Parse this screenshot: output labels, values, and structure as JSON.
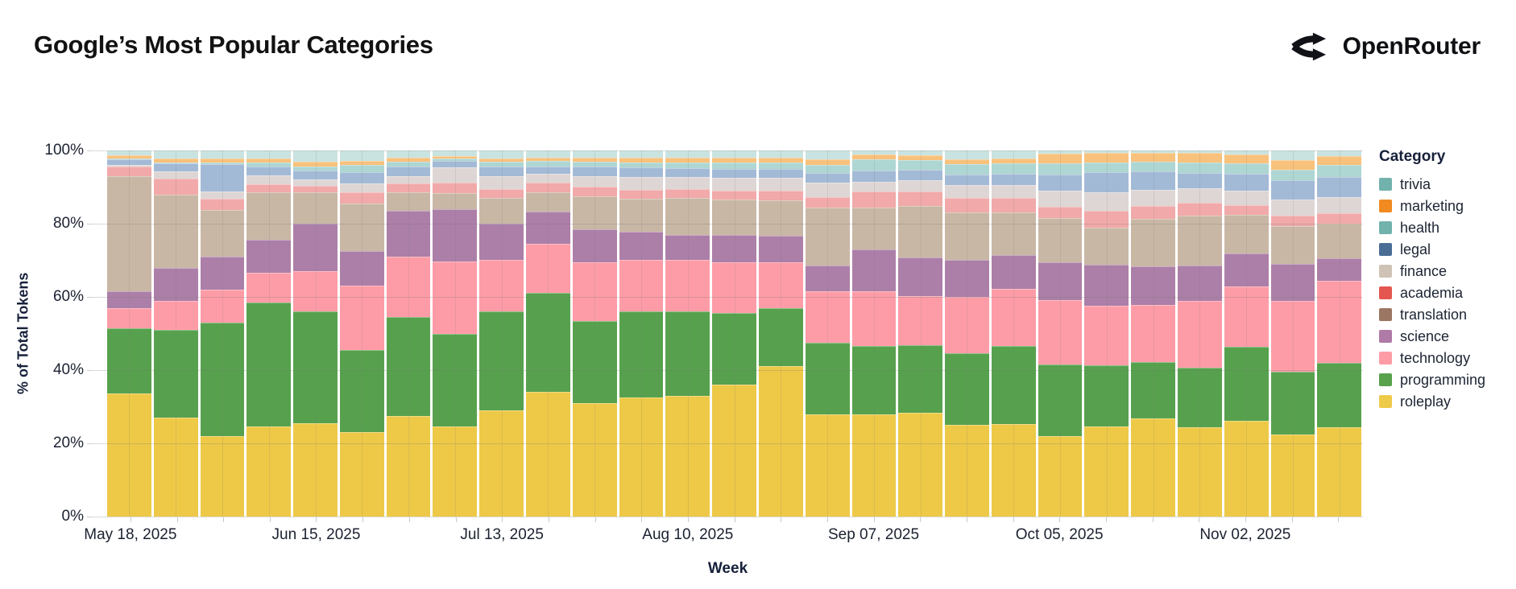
{
  "header": {
    "title": "Google’s Most Popular Categories",
    "brand": "OpenRouter"
  },
  "legend": {
    "title": "Category"
  },
  "chart_data": {
    "type": "bar",
    "stacked": true,
    "normalized": true,
    "title": "Google’s Most Popular Categories",
    "xlabel": "Week",
    "ylabel": "% of Total Tokens",
    "ylim": [
      0,
      100
    ],
    "grid": true,
    "legend_position": "right",
    "yticks": [
      {
        "value": 0,
        "label": "0%"
      },
      {
        "value": 20,
        "label": "20%"
      },
      {
        "value": 40,
        "label": "40%"
      },
      {
        "value": 60,
        "label": "60%"
      },
      {
        "value": 80,
        "label": "80%"
      },
      {
        "value": 100,
        "label": "100%"
      }
    ],
    "xticks": [
      {
        "bar": 0,
        "label": "May 18, 2025"
      },
      {
        "bar": 4,
        "label": "Jun 15, 2025"
      },
      {
        "bar": 8,
        "label": "Jul 13, 2025"
      },
      {
        "bar": 12,
        "label": "Aug 10, 2025"
      },
      {
        "bar": 16,
        "label": "Sep 07, 2025"
      },
      {
        "bar": 20,
        "label": "Oct 05, 2025"
      },
      {
        "bar": 24,
        "label": "Nov 02, 2025"
      }
    ],
    "weeks": [
      "May 18, 2025",
      "May 25, 2025",
      "Jun 01, 2025",
      "Jun 08, 2025",
      "Jun 15, 2025",
      "Jun 22, 2025",
      "Jun 29, 2025",
      "Jul 06, 2025",
      "Jul 13, 2025",
      "Jul 20, 2025",
      "Jul 27, 2025",
      "Aug 03, 2025",
      "Aug 10, 2025",
      "Aug 17, 2025",
      "Aug 24, 2025",
      "Aug 31, 2025",
      "Sep 07, 2025",
      "Sep 14, 2025",
      "Sep 21, 2025",
      "Sep 28, 2025",
      "Oct 05, 2025",
      "Oct 12, 2025",
      "Oct 19, 2025",
      "Oct 26, 2025",
      "Nov 02, 2025",
      "Nov 09, 2025",
      "Nov 16, 2025"
    ],
    "series": [
      {
        "name": "trivia",
        "legend_color": "#72b2ad",
        "bar_color": "#c9e3e0",
        "texture": "dots-light",
        "values": [
          1.4,
          2.2,
          2.3,
          2.2,
          3.1,
          2.8,
          2.0,
          1.5,
          2.2,
          1.9,
          2.0,
          2.0,
          2.0,
          2.0,
          2.0,
          2.4,
          1.2,
          1.4,
          2.4,
          2.2,
          0.8,
          0.7,
          0.7,
          0.7,
          1.2,
          2.6,
          1.5
        ]
      },
      {
        "name": "marketing",
        "legend_color": "#f18a20",
        "bar_color": "#f8c17c",
        "texture": null,
        "values": [
          0.8,
          1.1,
          1.1,
          1.1,
          1.2,
          1.2,
          1.0,
          0.6,
          0.8,
          1.0,
          1.0,
          1.2,
          1.2,
          1.2,
          1.2,
          1.5,
          1.3,
          1.3,
          1.4,
          1.4,
          2.8,
          2.5,
          2.3,
          2.6,
          2.4,
          2.6,
          2.5
        ]
      },
      {
        "name": "health",
        "legend_color": "#72b2ad",
        "bar_color": "#aed6d2",
        "texture": null,
        "values": [
          0.3,
          0.3,
          0.3,
          1.1,
          1.2,
          2.0,
          1.5,
          0.8,
          1.5,
          1.5,
          1.5,
          1.5,
          1.7,
          1.8,
          1.8,
          2.3,
          2.9,
          2.5,
          2.7,
          2.7,
          2.9,
          2.8,
          2.8,
          2.8,
          2.8,
          3.0,
          3.2
        ]
      },
      {
        "name": "legal",
        "legend_color": "#4a6d96",
        "bar_color": "#a3bad6",
        "texture": "dots-light",
        "values": [
          1.5,
          2.2,
          7.5,
          2.5,
          2.4,
          3.0,
          2.5,
          1.8,
          2.5,
          2.0,
          2.5,
          2.5,
          2.3,
          2.5,
          2.5,
          2.5,
          3.1,
          3.0,
          3.0,
          3.2,
          4.5,
          5.4,
          4.9,
          4.2,
          4.6,
          5.2,
          5.5
        ]
      },
      {
        "name": "finance",
        "legend_color": "#cfc3b6",
        "bar_color": "#ddd6d4",
        "texture": "dots-dark",
        "values": [
          0.5,
          1.8,
          2.0,
          2.3,
          1.8,
          2.5,
          2.0,
          4.0,
          3.5,
          2.5,
          3.0,
          3.5,
          3.3,
          3.5,
          3.5,
          4.0,
          2.8,
          3.0,
          3.5,
          3.5,
          4.5,
          5.1,
          4.5,
          4.0,
          4.0,
          4.4,
          4.5
        ]
      },
      {
        "name": "academia",
        "legend_color": "#e4564f",
        "bar_color": "#f1a9a9",
        "texture": null,
        "values": [
          2.5,
          4.4,
          3.0,
          2.3,
          1.8,
          3.0,
          2.5,
          2.9,
          2.5,
          2.5,
          2.5,
          2.5,
          2.5,
          2.5,
          2.7,
          3.0,
          4.4,
          4.0,
          4.0,
          4.0,
          3.0,
          4.5,
          3.5,
          3.6,
          2.6,
          2.8,
          2.8
        ]
      },
      {
        "name": "translation",
        "legend_color": "#9b7662",
        "bar_color": "#c9b7a5",
        "texture": null,
        "values": [
          31.5,
          20.0,
          12.8,
          13.0,
          8.5,
          13.0,
          5.0,
          4.4,
          7.0,
          5.3,
          9.0,
          9.1,
          10.0,
          9.5,
          9.5,
          15.8,
          11.3,
          14.0,
          13.0,
          11.6,
          12.0,
          10.3,
          13.0,
          13.5,
          10.6,
          10.5,
          9.5
        ]
      },
      {
        "name": "science",
        "legend_color": "#b07aa6",
        "bar_color": "#ac7fa8",
        "texture": null,
        "values": [
          4.5,
          9.0,
          9.0,
          9.0,
          13.0,
          9.5,
          12.5,
          14.3,
          10.0,
          8.8,
          9.0,
          7.7,
          7.0,
          7.5,
          7.3,
          7.0,
          11.5,
          10.6,
          10.0,
          9.3,
          10.5,
          11.1,
          10.5,
          9.7,
          9.0,
          10.1,
          6.2
        ]
      },
      {
        "name": "technology",
        "legend_color": "#fe9ca6",
        "bar_color": "#fd9ca7",
        "texture": null,
        "values": [
          5.5,
          8.0,
          9.0,
          8.0,
          11.0,
          17.5,
          16.5,
          19.8,
          14.0,
          13.5,
          16.0,
          14.0,
          14.0,
          14.0,
          12.5,
          14.0,
          15.0,
          13.4,
          15.5,
          15.6,
          17.5,
          16.4,
          15.6,
          18.2,
          16.4,
          19.3,
          22.4
        ]
      },
      {
        "name": "programming",
        "legend_color": "#59a14d",
        "bar_color": "#57a14e",
        "texture": null,
        "values": [
          18.0,
          24.0,
          31.0,
          34.0,
          30.5,
          22.5,
          27.0,
          25.4,
          27.0,
          27.0,
          22.5,
          23.5,
          23.0,
          19.5,
          16.0,
          19.5,
          18.5,
          18.5,
          19.5,
          21.2,
          19.5,
          16.5,
          15.3,
          16.4,
          20.2,
          17.0,
          17.5
        ]
      },
      {
        "name": "roleplay",
        "legend_color": "#eeca49",
        "bar_color": "#edc947",
        "texture": null,
        "values": [
          33.5,
          27.0,
          22.0,
          24.5,
          25.5,
          23.0,
          27.5,
          24.5,
          29.0,
          34.0,
          31.0,
          32.5,
          33.0,
          36.0,
          41.0,
          28.0,
          28.0,
          28.3,
          25.0,
          25.3,
          22.0,
          24.7,
          26.9,
          24.3,
          26.2,
          22.5,
          24.4
        ]
      }
    ]
  }
}
